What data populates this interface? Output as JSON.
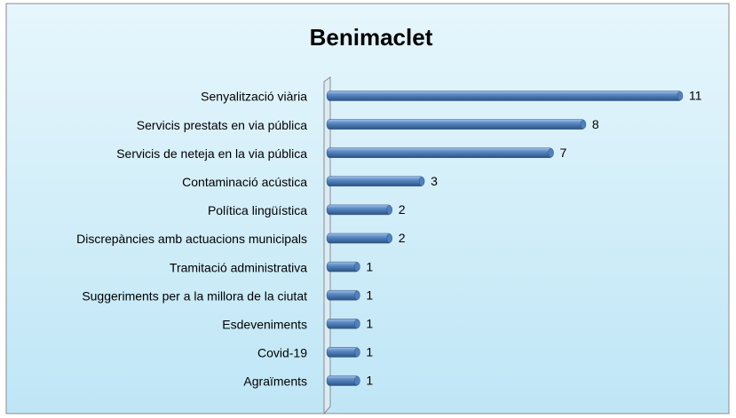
{
  "chart_data": {
    "type": "bar",
    "orientation": "horizontal",
    "title": "Benimaclet",
    "categories": [
      "Senyalització viària",
      "Servicis prestats en via pública",
      "Servicis de neteja en la via pública",
      "Contaminació acústica",
      "Política lingüística",
      "Discrepàncies amb actuacions municipals",
      "Tramitació administrativa",
      "Suggeriments per a la millora de la ciutat",
      "Esdeveniments",
      "Covid-19",
      "Agraïments"
    ],
    "values": [
      11,
      8,
      7,
      3,
      2,
      2,
      1,
      1,
      1,
      1,
      1
    ],
    "color": "#4f81bd",
    "xlim": [
      0,
      11
    ]
  }
}
